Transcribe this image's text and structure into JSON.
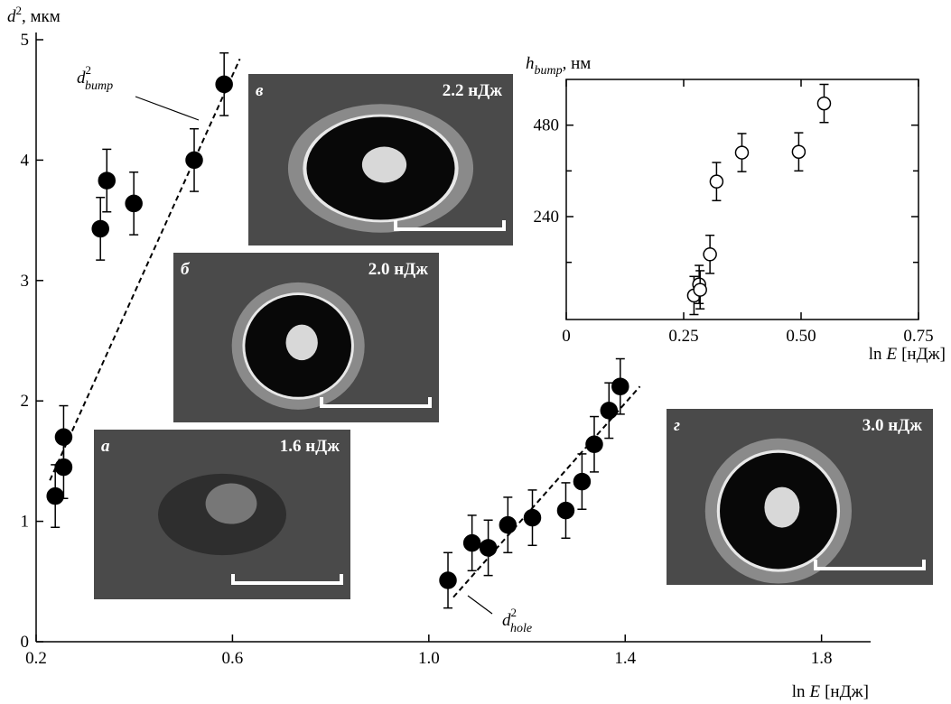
{
  "chart_data": [
    {
      "type": "scatter",
      "xlabel": {
        "pre": "ln",
        "var": "E",
        "unit": "[нДж]"
      },
      "ylabel": {
        "var": "d",
        "sup": "2",
        "unit": ", мкм"
      },
      "xlim": [
        0.2,
        1.9
      ],
      "ylim": [
        0,
        5
      ],
      "xticks": [
        0.2,
        0.6,
        {
          "value": 1,
          "label": "1.0"
        },
        1.4,
        1.8
      ],
      "yticks": [
        0,
        1,
        2,
        3,
        4,
        5
      ],
      "series": [
        {
          "color": "#000000",
          "x": [
            0.239,
            0.256,
            0.256,
            0.331,
            0.344,
            0.399,
            0.522,
            0.583
          ],
          "values": [
            1.21,
            1.45,
            1.7,
            3.43,
            3.83,
            3.64,
            4.0,
            4.63
          ],
          "errors": [
            0.26,
            0.26,
            0.26,
            0.26,
            0.26,
            0.26,
            0.26,
            0.26
          ]
        },
        {
          "color": "#000000",
          "x": [
            1.039,
            1.088,
            1.121,
            1.161,
            1.211,
            1.279,
            1.312,
            1.337,
            1.367,
            1.39
          ],
          "values": [
            0.51,
            0.82,
            0.78,
            0.97,
            1.03,
            1.09,
            1.33,
            1.64,
            1.92,
            2.12
          ],
          "errors": [
            0.23,
            0.23,
            0.23,
            0.23,
            0.23,
            0.23,
            0.23,
            0.23,
            0.23,
            0.23
          ]
        }
      ],
      "fits": [
        {
          "x": [
            0.228,
            0.615
          ],
          "values": [
            1.34,
            4.84
          ]
        },
        {
          "x": [
            1.05,
            1.43
          ],
          "values": [
            0.37,
            2.12
          ]
        }
      ],
      "annotations": [
        {
          "base": "d",
          "sup": "2",
          "sub": "bump"
        },
        {
          "base": "d",
          "sup": "2",
          "sub": "hole"
        }
      ]
    },
    {
      "type": "scatter",
      "marker": "open",
      "xlabel": {
        "pre": "ln",
        "var": "E",
        "unit": "[нДж]"
      },
      "ylabel": {
        "var": "h",
        "sub": "bump",
        "unit": ", нм"
      },
      "xlim": [
        0,
        0.75
      ],
      "ylim": [
        -30,
        600
      ],
      "xticks": [
        0,
        0.25,
        {
          "value": 0.5,
          "label": "0.50"
        },
        0.75
      ],
      "yticks": [
        240,
        480
      ],
      "minor_yticks": [
        120,
        360
      ],
      "series": [
        {
          "color": "#000000",
          "x": [
            0.272,
            0.283,
            0.285,
            0.306,
            0.32,
            0.374,
            0.495,
            0.549
          ],
          "values": [
            33,
            62,
            48,
            141,
            332,
            408,
            410,
            537
          ],
          "errors": [
            50,
            50,
            50,
            50,
            50,
            50,
            50,
            50
          ]
        }
      ]
    }
  ],
  "insets": [
    {
      "letter": "в",
      "energy": "2.2 нДж"
    },
    {
      "letter": "б",
      "energy": "2.0 нДж"
    },
    {
      "letter": "а",
      "energy": "1.6 нДж"
    },
    {
      "letter": "г",
      "energy": "3.0 нДж"
    }
  ]
}
